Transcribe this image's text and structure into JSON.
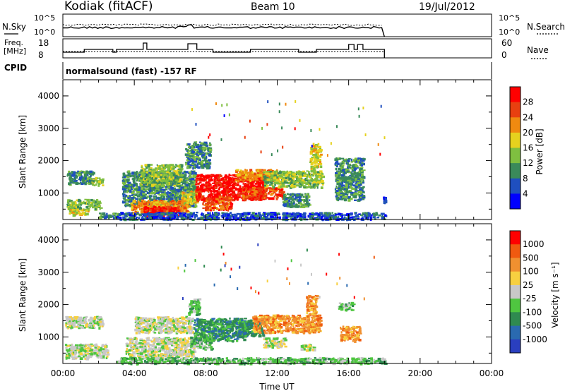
{
  "header": {
    "station": "Kodiak (fitACF)",
    "beam": "Beam 10",
    "date": "19/Jul/2012"
  },
  "noise_panel": {
    "left_label": "N.Sky",
    "right_label": "N.Search",
    "left_ticks": [
      "10^5",
      "10^0"
    ],
    "right_ticks": [
      "10^5",
      "10^0"
    ]
  },
  "freq_panel": {
    "left_label_1": "Freq.",
    "left_label_2": "[MHz]",
    "right_label": "Nave",
    "left_ticks": [
      "18",
      "8"
    ],
    "right_ticks": [
      "60",
      "0"
    ]
  },
  "cpid_panel": {
    "label": "CPID",
    "text": "normalsound (fast) -157 RF"
  },
  "chart_data": [
    {
      "type": "heatmap",
      "ylabel": "Slant Range [km]",
      "xlabel": "",
      "yticks": [
        "4000",
        "3000",
        "2000",
        "1000"
      ],
      "ylim": [
        180,
        4500
      ],
      "xlim_hours": [
        0,
        24
      ],
      "colorbar": {
        "label": "Power [dB]",
        "ticks": [
          "28",
          "24",
          "20",
          "16",
          "12",
          "8",
          "4"
        ],
        "colors": [
          "#0000ff",
          "#1f4fbf",
          "#3a8a5a",
          "#7fbf40",
          "#e6d21e",
          "#f08a10",
          "#e84010",
          "#ff0000"
        ]
      },
      "regions": [
        {
          "t0": 0.2,
          "t1": 1.7,
          "r0": 1300,
          "r1": 1700,
          "level": 2
        },
        {
          "t0": 1.6,
          "t1": 2.2,
          "r0": 1250,
          "r1": 1500,
          "level": 3
        },
        {
          "t0": 0.2,
          "t1": 2.1,
          "r0": 520,
          "r1": 820,
          "level": 3
        },
        {
          "t0": 0.3,
          "t1": 1.4,
          "r0": 330,
          "r1": 520,
          "level": 4
        },
        {
          "t0": 2.0,
          "t1": 3.2,
          "r0": 250,
          "r1": 400,
          "level": 2
        },
        {
          "t0": 3.3,
          "t1": 7.4,
          "r0": 600,
          "r1": 1700,
          "level": 2
        },
        {
          "t0": 4.3,
          "t1": 6.6,
          "r0": 1250,
          "r1": 1900,
          "level": 3
        },
        {
          "t0": 3.8,
          "t1": 7.0,
          "r0": 380,
          "r1": 800,
          "level": 5
        },
        {
          "t0": 4.5,
          "t1": 6.4,
          "r0": 300,
          "r1": 600,
          "level": 7
        },
        {
          "t0": 6.6,
          "t1": 7.6,
          "r0": 700,
          "r1": 1100,
          "level": 4
        },
        {
          "t0": 7.4,
          "t1": 11.3,
          "r0": 800,
          "r1": 1600,
          "level": 7
        },
        {
          "t0": 7.8,
          "t1": 9.4,
          "r0": 500,
          "r1": 900,
          "level": 6
        },
        {
          "t0": 10.0,
          "t1": 12.3,
          "r0": 850,
          "r1": 1200,
          "level": 6
        },
        {
          "t0": 9.6,
          "t1": 12.0,
          "r0": 1400,
          "r1": 1750,
          "level": 5
        },
        {
          "t0": 11.2,
          "t1": 14.5,
          "r0": 1200,
          "r1": 1700,
          "level": 3
        },
        {
          "t0": 13.8,
          "t1": 14.4,
          "r0": 1700,
          "r1": 2550,
          "level": 4
        },
        {
          "t0": 12.3,
          "t1": 13.8,
          "r0": 600,
          "r1": 1000,
          "level": 2
        },
        {
          "t0": 15.2,
          "t1": 16.8,
          "r0": 800,
          "r1": 2100,
          "level": 2
        },
        {
          "t0": 6.8,
          "t1": 8.2,
          "r0": 1800,
          "r1": 2600,
          "level": 2
        },
        {
          "t0": 3.0,
          "t1": 18.0,
          "r0": 200,
          "r1": 420,
          "level": 1
        },
        {
          "t0": 17.9,
          "t1": 18.0,
          "r0": 700,
          "r1": 900,
          "level": 1
        }
      ]
    },
    {
      "type": "heatmap",
      "ylabel": "Slant Range [km]",
      "xlabel": "Time UT",
      "yticks": [
        "4000",
        "3000",
        "2000",
        "1000"
      ],
      "xticks": [
        "00:00",
        "04:00",
        "08:00",
        "12:00",
        "16:00",
        "20:00",
        "00:00"
      ],
      "ylim": [
        180,
        4500
      ],
      "xlim_hours": [
        0,
        24
      ],
      "colorbar": {
        "label": "Velocity [m s⁻¹]",
        "ticks": [
          "1000",
          "500",
          "100",
          "25",
          "-25",
          "-100",
          "-500",
          "-1000"
        ],
        "colors": [
          "#2a3fbf",
          "#2a6ab0",
          "#2f8a50",
          "#4fc640",
          "#c8c8c8",
          "#f7d040",
          "#f09030",
          "#f05a10",
          "#ff0000"
        ]
      },
      "regions": [
        {
          "t0": 0.1,
          "t1": 2.2,
          "r0": 1300,
          "r1": 1650,
          "level": 4
        },
        {
          "t0": 0.1,
          "t1": 2.5,
          "r0": 350,
          "r1": 800,
          "level": 4
        },
        {
          "t0": 3.5,
          "t1": 7.3,
          "r0": 400,
          "r1": 1000,
          "level": 4
        },
        {
          "t0": 4.0,
          "t1": 7.2,
          "r0": 1150,
          "r1": 1650,
          "level": 4
        },
        {
          "t0": 7.3,
          "t1": 10.2,
          "r0": 900,
          "r1": 1600,
          "level": 2
        },
        {
          "t0": 7.1,
          "t1": 8.3,
          "r0": 650,
          "r1": 1100,
          "level": 3
        },
        {
          "t0": 7.0,
          "t1": 7.6,
          "r0": 1700,
          "r1": 2200,
          "level": 3
        },
        {
          "t0": 9.8,
          "t1": 11.2,
          "r0": 1050,
          "r1": 1550,
          "level": 2
        },
        {
          "t0": 10.6,
          "t1": 14.4,
          "r0": 1150,
          "r1": 1700,
          "level": 6
        },
        {
          "t0": 13.6,
          "t1": 14.2,
          "r0": 1700,
          "r1": 2300,
          "level": 6
        },
        {
          "t0": 15.5,
          "t1": 16.6,
          "r0": 900,
          "r1": 1350,
          "level": 6
        },
        {
          "t0": 15.4,
          "t1": 16.2,
          "r0": 1850,
          "r1": 2100,
          "level": 3
        },
        {
          "t0": 11.2,
          "t1": 12.4,
          "r0": 700,
          "r1": 1000,
          "level": 4
        },
        {
          "t0": 13.2,
          "t1": 14.0,
          "r0": 600,
          "r1": 800,
          "level": 4
        },
        {
          "t0": 3.0,
          "t1": 18.0,
          "r0": 200,
          "r1": 380,
          "level": 3
        }
      ]
    }
  ]
}
